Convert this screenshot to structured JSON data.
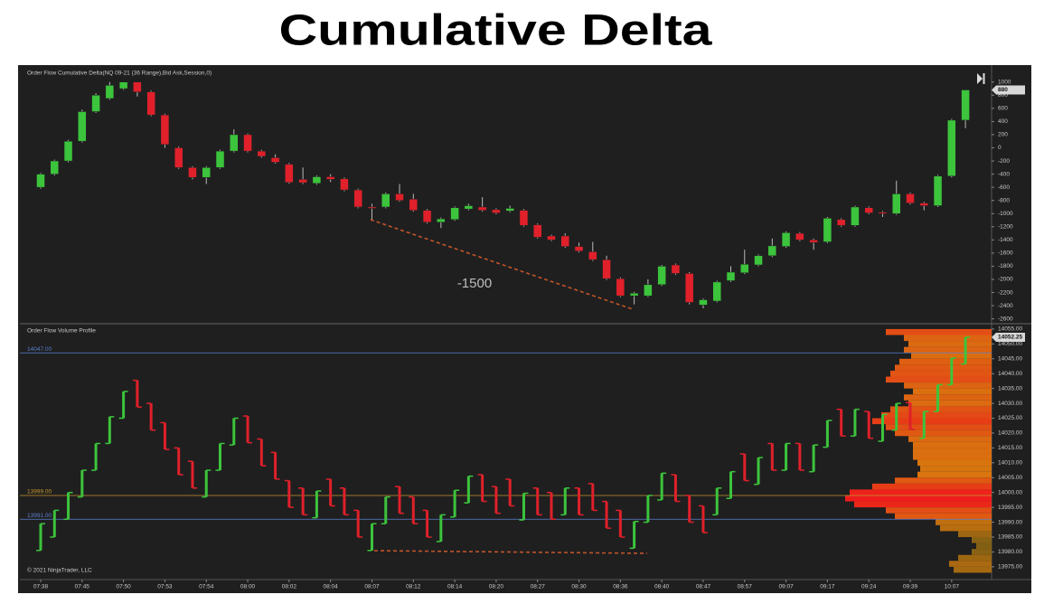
{
  "title": "Cumulative Delta",
  "chart_data": [
    {
      "type": "candlestick",
      "title": "Order Flow Cumulative Delta(NQ 09-21 (36 Range),Bid Ask,Session,0)",
      "annotation": "-1500",
      "up_color": "#3cc43c",
      "down_color": "#e0202a",
      "ylim": [
        -2660,
        1230
      ],
      "yticks": [
        1000,
        800,
        600,
        400,
        200,
        0,
        -200,
        -400,
        -600,
        -800,
        -1000,
        -1200,
        -1400,
        -1600,
        -1800,
        -2000,
        -2200,
        -2400,
        -2600
      ],
      "open": [
        -600,
        -400,
        -200,
        100,
        550,
        750,
        900,
        1000,
        850,
        500,
        0,
        -300,
        -450,
        -300,
        -50,
        200,
        -50,
        -150,
        -250,
        -480,
        -540,
        -440,
        -470,
        -640,
        -900,
        -900,
        -700,
        -780,
        -950,
        -1130,
        -1090,
        -930,
        -900,
        -940,
        -960,
        -950,
        -1170,
        -1340,
        -1340,
        -1500,
        -1580,
        -1700,
        -1990,
        -2250,
        -2250,
        -2080,
        -1780,
        -1910,
        -2390,
        -2330,
        -2020,
        -1900,
        -1780,
        -1640,
        -1500,
        -1300,
        -1400,
        -1430,
        -1090,
        -1180,
        -910,
        -980,
        -1000,
        -700,
        -840,
        -880,
        -430,
        420
      ],
      "high": [
        -380,
        -180,
        120,
        580,
        830,
        1000,
        1000,
        1000,
        870,
        520,
        20,
        -280,
        -280,
        -30,
        280,
        220,
        -30,
        -100,
        -230,
        -300,
        -420,
        -400,
        -450,
        -620,
        -850,
        -680,
        -550,
        -700,
        -930,
        -1060,
        -890,
        -850,
        -750,
        -920,
        -880,
        -930,
        -1150,
        -1320,
        -1300,
        -1440,
        -1430,
        -1640,
        -1970,
        -2190,
        -2000,
        -1780,
        -1760,
        -1890,
        -2290,
        -2020,
        -1800,
        -1550,
        -1620,
        -1380,
        -1270,
        -1280,
        -1380,
        -1050,
        -1070,
        -880,
        -890,
        -960,
        -500,
        -680,
        -820,
        -410,
        440,
        880
      ],
      "low": [
        -620,
        -420,
        -220,
        80,
        530,
        730,
        880,
        780,
        480,
        0,
        -320,
        -480,
        -550,
        -320,
        -70,
        -70,
        -150,
        -240,
        -545,
        -550,
        -560,
        -520,
        -660,
        -920,
        -1100,
        -920,
        -820,
        -970,
        -1150,
        -1220,
        -1110,
        -950,
        -970,
        -1010,
        -980,
        -1200,
        -1380,
        -1420,
        -1520,
        -1590,
        -1720,
        -2010,
        -2270,
        -2380,
        -2270,
        -2100,
        -1930,
        -2380,
        -2440,
        -2350,
        -2040,
        -1920,
        -1800,
        -1660,
        -1520,
        -1420,
        -1550,
        -1450,
        -1200,
        -1200,
        -1010,
        -1050,
        -1020,
        -860,
        -950,
        -900,
        -450,
        300
      ],
      "close": [
        -400,
        -200,
        100,
        550,
        800,
        950,
        1000,
        850,
        500,
        50,
        -300,
        -450,
        -300,
        -50,
        200,
        -50,
        -130,
        -220,
        -525,
        -530,
        -440,
        -480,
        -640,
        -900,
        -920,
        -700,
        -800,
        -950,
        -1130,
        -1080,
        -910,
        -880,
        -950,
        -990,
        -920,
        -1180,
        -1360,
        -1400,
        -1500,
        -1570,
        -1700,
        -1990,
        -2250,
        -2210,
        -2080,
        -1800,
        -1910,
        -2350,
        -2310,
        -2040,
        -1890,
        -1770,
        -1640,
        -1490,
        -1290,
        -1400,
        -1440,
        -1070,
        -1180,
        -900,
        -990,
        -1000,
        -700,
        -840,
        -880,
        -430,
        420,
        880
      ]
    },
    {
      "type": "ohlc",
      "title": "Order Flow Volume Profile",
      "copyright": "© 2021 NinjaTrader, LLC",
      "up_color": "#3cc43c",
      "down_color": "#e0202a",
      "ylim": [
        13971,
        14056.5
      ],
      "yticks": [
        {
          "value": 14055,
          "label": "14055.00"
        },
        {
          "value": 14050,
          "label": "14050.00"
        },
        {
          "value": 14045,
          "label": "14045.00"
        },
        {
          "value": 14040,
          "label": "14040.00"
        },
        {
          "value": 14035,
          "label": "14035.00"
        },
        {
          "value": 14030,
          "label": "14030.00"
        },
        {
          "value": 14025,
          "label": "14025.00"
        },
        {
          "value": 14020,
          "label": "14020.00"
        },
        {
          "value": 14015,
          "label": "14015.00"
        },
        {
          "value": 14010,
          "label": "14010.00"
        },
        {
          "value": 14005,
          "label": "14005.00"
        },
        {
          "value": 14000,
          "label": "14000.00"
        },
        {
          "value": 13995,
          "label": "13995.00"
        },
        {
          "value": 13990,
          "label": "13990.00"
        },
        {
          "value": 13985,
          "label": "13985.00"
        },
        {
          "value": 13980,
          "label": "13980.00"
        },
        {
          "value": 13975,
          "label": "13975.00"
        }
      ],
      "price_lines": [
        {
          "value": 14047,
          "label": "14047.00",
          "color": "#5b7fd0"
        },
        {
          "value": 13999,
          "label": "13999.00",
          "color": "#c89a2e"
        },
        {
          "value": 13991,
          "label": "13991.00",
          "color": "#5b7fd0"
        }
      ],
      "categories": [
        "07:38",
        null,
        null,
        "07:45",
        null,
        null,
        "07:50",
        null,
        null,
        "07:53",
        null,
        null,
        "07:54",
        null,
        null,
        "08:00",
        null,
        null,
        "08:02",
        null,
        null,
        "08:04",
        null,
        null,
        "08:07",
        null,
        null,
        "08:12",
        null,
        null,
        "08:14",
        null,
        null,
        "08:20",
        null,
        null,
        "08:27",
        null,
        null,
        "08:30",
        null,
        null,
        "08:36",
        null,
        null,
        "08:40",
        null,
        null,
        "08:47",
        null,
        null,
        "08:57",
        null,
        null,
        "09:07",
        null,
        null,
        "09:17",
        null,
        null,
        "09:24",
        null,
        null,
        "09:39",
        null,
        null,
        "10:07",
        null
      ],
      "open": [
        13980.5,
        13985,
        13991,
        13998.5,
        14007.5,
        14016.5,
        14025,
        14037.75,
        14030,
        14023.5,
        14015,
        14010.5,
        13998.5,
        14007.5,
        14016,
        14025.75,
        14018,
        14013.5,
        14004,
        14001.5,
        13991.5,
        14004.5,
        14001.5,
        13994,
        13980.5,
        13989.5,
        14002,
        13998.5,
        13994,
        13983.5,
        13991.75,
        13996.5,
        14006,
        14002,
        14004.5,
        13990.75,
        14001.5,
        14000,
        13992.5,
        14001.5,
        14003,
        13997,
        13994,
        13981.25,
        13990,
        13997.5,
        14006,
        13999,
        13995.5,
        13992.5,
        13998,
        14013,
        14002.75,
        14016.5,
        14007.5,
        14016.5,
        14007,
        14015.25,
        14028,
        14019,
        14027.25,
        14017.25,
        14021,
        14030.25,
        14018.25,
        14027.25,
        14036.25,
        14043.25
      ],
      "high": [
        13989.5,
        13994,
        14000,
        14007.5,
        14016.5,
        14025.5,
        14034,
        14037.75,
        14030,
        14023.5,
        14015,
        14010.5,
        14007.5,
        14016.5,
        14025,
        14025.75,
        14018,
        14013.5,
        14004,
        14001.5,
        14000.5,
        14004.5,
        14001.5,
        13994,
        13989.5,
        13998.5,
        14002,
        13998.5,
        13994,
        13992.5,
        14000.75,
        14005.5,
        14006,
        14002,
        14004.5,
        13999.75,
        14001.5,
        14000,
        14001.5,
        14001.5,
        14003,
        13997,
        13994,
        13990.25,
        13999,
        14006.5,
        14006,
        13999,
        13995.5,
        14001.5,
        14007,
        14013,
        14011.75,
        14016.5,
        14016.5,
        14016.5,
        14016,
        14024.25,
        14028,
        14028,
        14027.25,
        14026.25,
        14030,
        14030.25,
        14027.25,
        14036.25,
        14045.25,
        14052.25
      ],
      "low": [
        13980.5,
        13985,
        13991,
        13998.5,
        14007.5,
        14016.5,
        14025,
        14028.75,
        14021,
        14014.5,
        14006,
        14001.5,
        13998.5,
        14007.5,
        14016,
        14016.75,
        14009,
        14004.5,
        13995,
        13992.5,
        13991.5,
        13995.5,
        13992.5,
        13985,
        13980.5,
        13989.5,
        13993,
        13989.5,
        13985,
        13983.5,
        13991.75,
        13996.5,
        13997,
        13993,
        13995.5,
        13990.75,
        13992.5,
        13991,
        13992.5,
        13992.5,
        13994,
        13988,
        13985,
        13981.25,
        13990,
        13997.5,
        13997,
        13990,
        13986.5,
        13992.5,
        13998,
        14004,
        14002.75,
        14007.5,
        14007.5,
        14007.5,
        14007,
        14015.25,
        14019,
        14019,
        14018.25,
        14017.25,
        14021,
        14021.25,
        14018.25,
        14027.25,
        14036.25,
        14043.25
      ],
      "close": [
        13989.5,
        13994,
        14000,
        14007.5,
        14016.5,
        14025.5,
        14034,
        14028.75,
        14021,
        14014.5,
        14006,
        14001.5,
        14007.5,
        14016.5,
        14025,
        14016.75,
        14009,
        14004.5,
        13995,
        13992.5,
        14000.5,
        13995.5,
        13992.5,
        13985,
        13989.5,
        13998.5,
        13993,
        13989.5,
        13985,
        13992.5,
        14000.75,
        14005.5,
        13997,
        13993,
        13995.5,
        13999.75,
        13992.5,
        13991,
        14001.5,
        13992.5,
        13994,
        13988,
        13985,
        13990.25,
        13999,
        14006.5,
        13997,
        13990,
        13986.5,
        14001.5,
        14007,
        14004,
        14011.75,
        14007.5,
        14016.5,
        14007.5,
        14016,
        14024.25,
        14019,
        14028,
        14018.25,
        14026.25,
        14030,
        14021.25,
        14027.25,
        14036.25,
        14045.25,
        14052.25
      ],
      "volume_profile": {
        "colors": [
          "#6b5a14",
          "#d9760f",
          "#ee1c1c"
        ],
        "prices": [
          14054,
          14052,
          14050,
          14048,
          14046,
          14044,
          14042,
          14040,
          14038,
          14036,
          14034,
          14032,
          14030,
          14028,
          14026,
          14024,
          14022,
          14020,
          14018,
          14016,
          14014,
          14012,
          14010,
          14008,
          14006,
          14004,
          14002,
          14000,
          13998,
          13996,
          13994,
          13992,
          13990,
          13988,
          13986,
          13984,
          13982,
          13980,
          13978,
          13976,
          13974
        ],
        "volumes": [
          117,
          97,
          92,
          97,
          89,
          102,
          107,
          112,
          117,
          97,
          87,
          97,
          92,
          112,
          122,
          132,
          117,
          107,
          92,
          87,
          87,
          87,
          82,
          79,
          82,
          107,
          132,
          157,
          162,
          152,
          117,
          107,
          62,
          57,
          37,
          22,
          17,
          22,
          37,
          47,
          42
        ]
      }
    }
  ]
}
